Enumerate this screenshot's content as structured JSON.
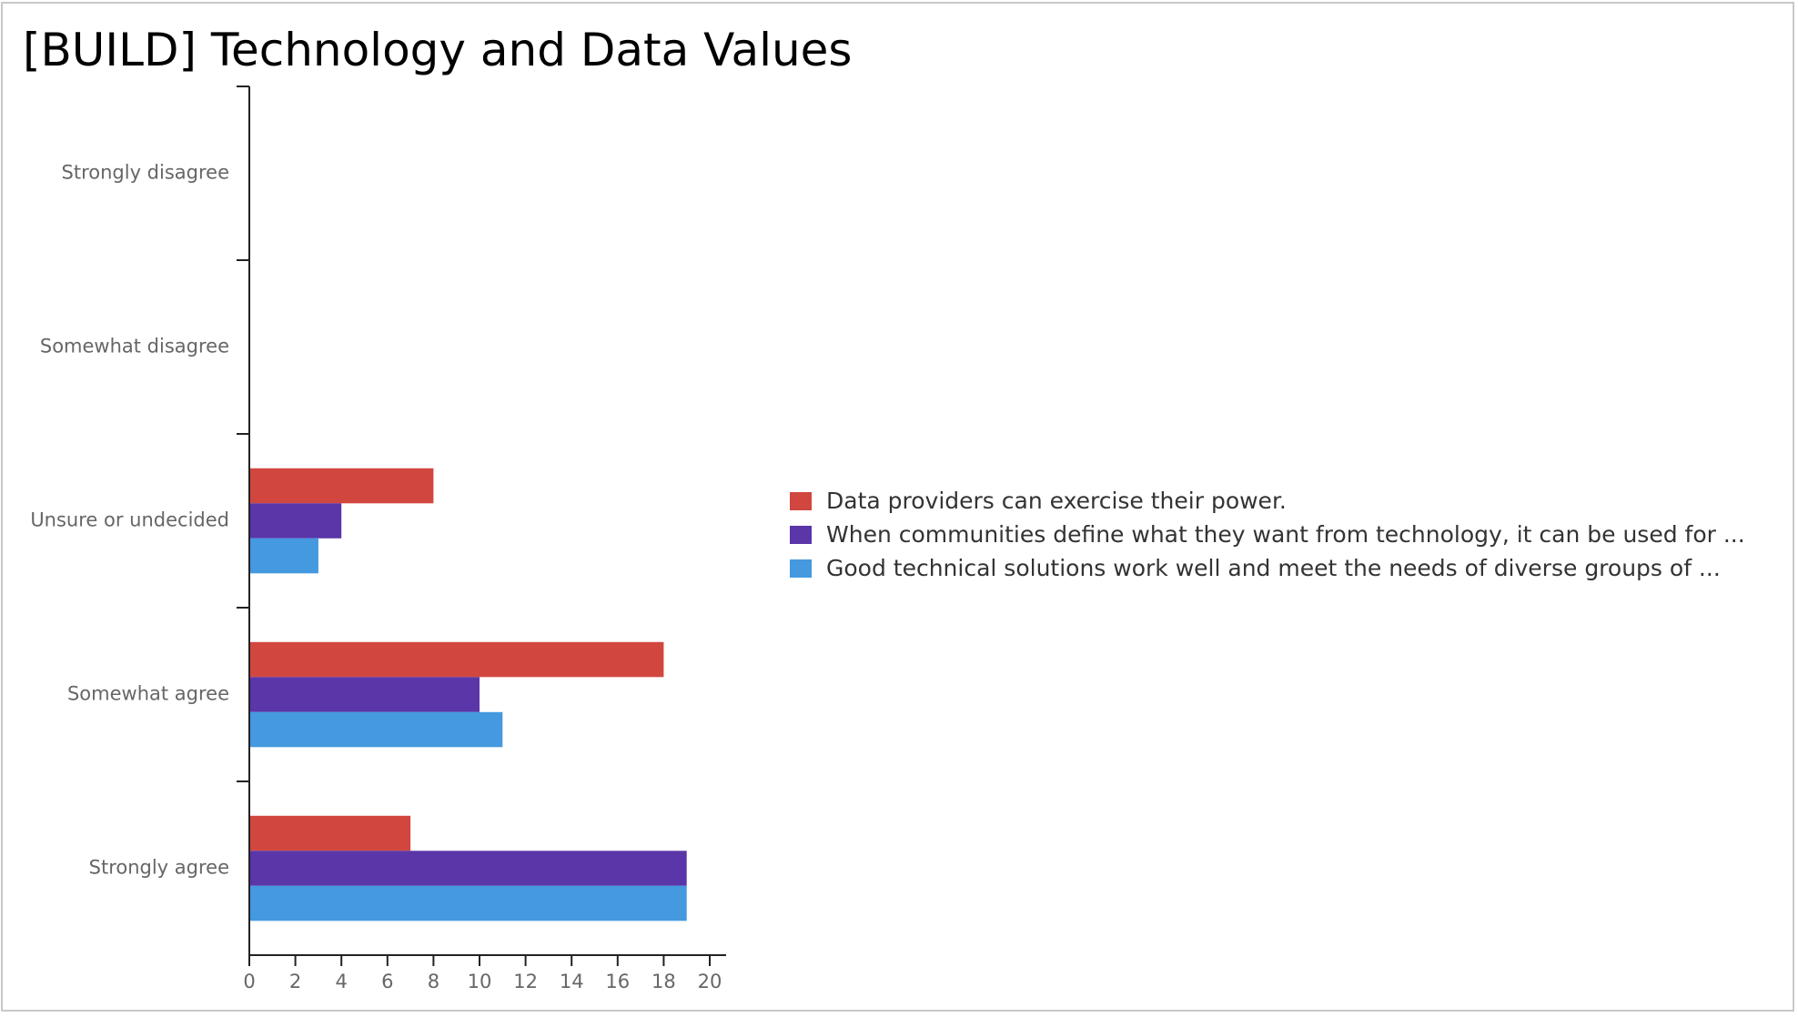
{
  "slide": {
    "title": "[BUILD] Technology and Data Values"
  },
  "chart_data": {
    "type": "bar",
    "orientation": "horizontal",
    "title": "",
    "xlabel": "",
    "ylabel": "",
    "categories": [
      "Strongly disagree",
      "Somewhat disagree",
      "Unsure or undecided",
      "Somewhat agree",
      "Strongly agree"
    ],
    "series": [
      {
        "name": "Data providers can exercise their power.",
        "color": "#d1473f",
        "values": [
          0,
          0,
          8,
          18,
          7
        ]
      },
      {
        "name": "When communities define what they want from technology, it can be used for ...",
        "color": "#5a36a8",
        "values": [
          0,
          0,
          4,
          10,
          19
        ]
      },
      {
        "name": "Good technical solutions work well and meet the needs of diverse groups of ...",
        "color": "#4499df",
        "values": [
          0,
          0,
          3,
          11,
          19
        ]
      }
    ],
    "xlim": [
      0,
      20
    ],
    "xticks": [
      0,
      2,
      4,
      6,
      8,
      10,
      12,
      14,
      16,
      18,
      20
    ],
    "grid": false,
    "legend_position": "right"
  }
}
